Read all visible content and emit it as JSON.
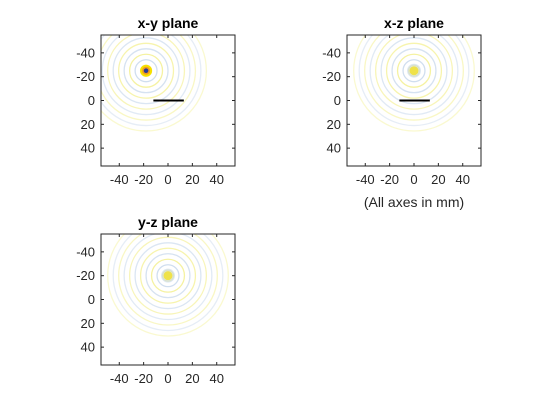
{
  "figure_note": "(All axes in mm)",
  "colors": {
    "ring_yellow": "#f3ef8a",
    "ring_blue": "#c8d8ec",
    "hot_yellow": "#f6e000",
    "hot_orange": "#f09a20",
    "hot_core": "#2a3c9a",
    "segment": "#000000",
    "axis": "#262626"
  },
  "chart_data": [
    {
      "type": "heatmap",
      "title": "x-y plane",
      "xlim": [
        -55,
        55
      ],
      "ylim": [
        -55,
        55
      ],
      "y_reversed": true,
      "xticks": [
        "-40",
        "-20",
        "0",
        "20",
        "40"
      ],
      "yticks": [
        "-40",
        "-20",
        "0",
        "20",
        "40"
      ],
      "xtick_values": [
        -40,
        -20,
        0,
        20,
        40
      ],
      "ytick_values": [
        -40,
        -20,
        0,
        20,
        40
      ],
      "grid": false,
      "source_center": [
        -18,
        -25
      ],
      "ring_max_radius": 52,
      "ring_spacing": 4.5,
      "peak": "strong",
      "segment": {
        "x": [
          -12,
          13
        ],
        "y": [
          0,
          0
        ]
      }
    },
    {
      "type": "heatmap",
      "title": "x-z plane",
      "xlim": [
        -55,
        55
      ],
      "ylim": [
        -55,
        55
      ],
      "y_reversed": true,
      "xticks": [
        "-40",
        "-20",
        "0",
        "20",
        "40"
      ],
      "yticks": [
        "-40",
        "-20",
        "0",
        "20",
        "40"
      ],
      "xtick_values": [
        -40,
        -20,
        0,
        20,
        40
      ],
      "ytick_values": [
        -40,
        -20,
        0,
        20,
        40
      ],
      "grid": false,
      "source_center": [
        0,
        -25
      ],
      "ring_max_radius": 50,
      "ring_spacing": 4.5,
      "peak": "weak",
      "segment": {
        "x": [
          -12,
          13
        ],
        "y": [
          0,
          0
        ]
      }
    },
    {
      "type": "heatmap",
      "title": "y-z plane",
      "xlim": [
        -55,
        55
      ],
      "ylim": [
        -55,
        55
      ],
      "y_reversed": true,
      "xticks": [
        "-40",
        "-20",
        "0",
        "20",
        "40"
      ],
      "yticks": [
        "-40",
        "-20",
        "0",
        "20",
        "40"
      ],
      "xtick_values": [
        -40,
        -20,
        0,
        20,
        40
      ],
      "ytick_values": [
        -40,
        -20,
        0,
        20,
        40
      ],
      "grid": false,
      "source_center": [
        0,
        -20
      ],
      "ring_max_radius": 50,
      "ring_spacing": 4.5,
      "peak": "weak",
      "segment": null
    }
  ]
}
